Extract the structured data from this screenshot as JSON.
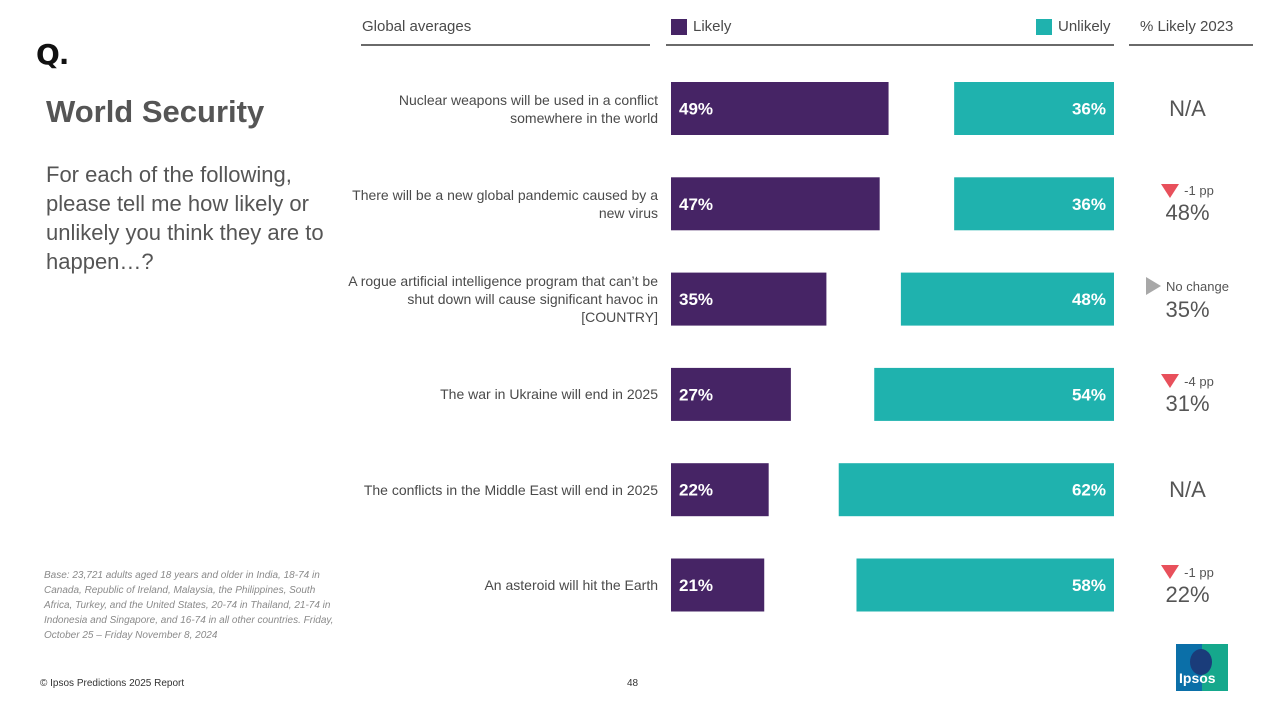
{
  "brand": {
    "logo_text": "Q.",
    "report_copyright": "© Ipsos Predictions 2025 Report",
    "page_number": "48",
    "ipsos_logo_text": "Ipsos"
  },
  "title": "World Security",
  "question": "For each of the following, please tell me how likely or unlikely you think they are to happen…?",
  "base_note": "Base: 23,721 adults aged 18 years and older in India, 18-74 in Canada, Republic of Ireland, Malaysia, the Philippines, South Africa, Turkey, and the United States, 20-74 in Thailand, 21-74 in Indonesia and Singapore, and 16-74 in all other countries. Friday, October 25 – Friday November 8, 2024",
  "headers": {
    "global": "Global averages",
    "likely": "Likely",
    "unlikely": "Unlikely",
    "likely_2023": "% Likely 2023"
  },
  "colors": {
    "likely": "#462465",
    "unlikely": "#1fb2ae",
    "down": "#e8505b",
    "neutral": "#a8a8a8"
  },
  "chart_data": {
    "type": "bar",
    "title": "World Security",
    "xlim": [
      0,
      100
    ],
    "categories": [
      "Nuclear weapons will be used in a conflict somewhere in the world",
      "There will be a new global pandemic caused by a new virus",
      "A rogue artificial intelligence program that can’t be shut down will cause significant havoc in [COUNTRY]",
      "The war in Ukraine will end in 2025",
      "The conflicts in the Middle East will end in 2025",
      "An asteroid will hit the Earth"
    ],
    "series": [
      {
        "name": "Likely",
        "values": [
          49,
          47,
          35,
          27,
          22,
          21
        ]
      },
      {
        "name": "Unlikely",
        "values": [
          36,
          36,
          48,
          54,
          62,
          58
        ]
      }
    ],
    "comparison_2023": [
      {
        "value": "N/A",
        "change": "",
        "direction": "none"
      },
      {
        "value": "48%",
        "change": "-1 pp",
        "direction": "down"
      },
      {
        "value": "35%",
        "change": "No change",
        "direction": "same"
      },
      {
        "value": "31%",
        "change": "-4 pp",
        "direction": "down"
      },
      {
        "value": "N/A",
        "change": "",
        "direction": "none"
      },
      {
        "value": "22%",
        "change": "-1 pp",
        "direction": "down"
      }
    ]
  }
}
